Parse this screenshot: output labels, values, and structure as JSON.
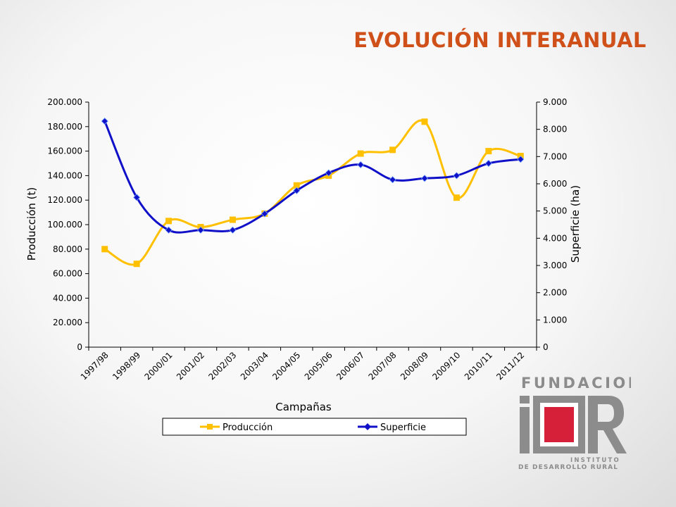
{
  "slide": {
    "title": "EVOLUCIÓN INTERANUAL"
  },
  "colors": {
    "title": "#d0501a",
    "produccion": "#ffc000",
    "superficie": "#1010c8",
    "logo_red": "#d6203a",
    "logo_gray": "#8c8c8c"
  },
  "chart_data": {
    "type": "line",
    "categories": [
      "1997/98",
      "1998/99",
      "2000/01",
      "2001/02",
      "2002/03",
      "2003/04",
      "2004/05",
      "2005/06",
      "2006/07",
      "2007/08",
      "2008/09",
      "2009/10",
      "2010/11",
      "2011/12"
    ],
    "xlabel": "Campañas",
    "ylabel_left": "Producción (t)",
    "ylabel_right": "Superficie (ha)",
    "ylim_left": [
      0,
      200000
    ],
    "ylim_right": [
      0,
      9000
    ],
    "yticks_left": [
      "0",
      "20.000",
      "40.000",
      "60.000",
      "80.000",
      "100.000",
      "120.000",
      "140.000",
      "160.000",
      "180.000",
      "200.000"
    ],
    "yticks_right": [
      "0",
      "1.000",
      "2.000",
      "3.000",
      "4.000",
      "5.000",
      "6.000",
      "7.000",
      "8.000",
      "9.000"
    ],
    "grid": false,
    "smooth": true,
    "legend_position": "bottom",
    "series": [
      {
        "name": "Producción",
        "axis": "left",
        "marker": "square",
        "values": [
          80000,
          68000,
          103000,
          98000,
          104000,
          109000,
          132000,
          140000,
          158000,
          161000,
          184000,
          122000,
          160000,
          156000
        ]
      },
      {
        "name": "Superficie",
        "axis": "right",
        "marker": "diamond",
        "values": [
          8300,
          5500,
          4300,
          4300,
          4300,
          4900,
          5750,
          6400,
          6700,
          6150,
          6200,
          6300,
          6750,
          6900
        ]
      }
    ]
  },
  "logo": {
    "top": "FUNDACION",
    "letters": "iDR",
    "line1": "INSTITUTO",
    "line2": "DE DESARROLLO RURAL"
  }
}
